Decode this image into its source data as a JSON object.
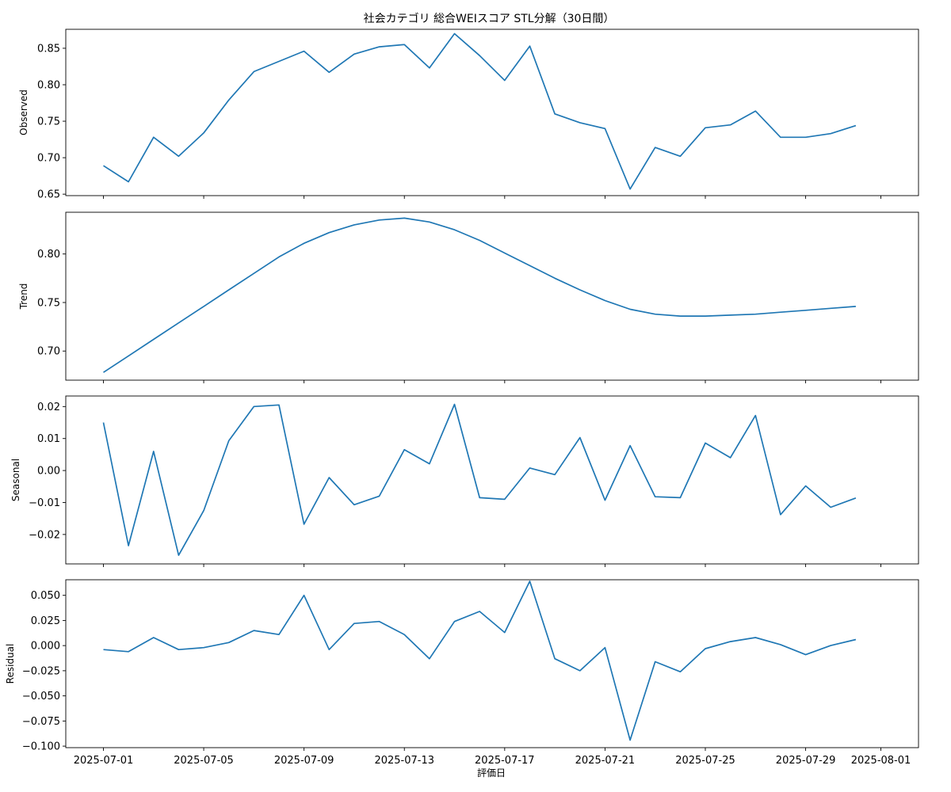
{
  "figure": {
    "title": "社会カテゴリ 総合WEIスコア STL分解（30日間）",
    "xlabel": "評価日",
    "line_color": "#1f77b4"
  },
  "chart_data": [
    {
      "type": "line",
      "ylabel": "Observed",
      "x": [
        "2025-07-01",
        "2025-07-02",
        "2025-07-03",
        "2025-07-04",
        "2025-07-05",
        "2025-07-06",
        "2025-07-07",
        "2025-07-08",
        "2025-07-09",
        "2025-07-10",
        "2025-07-11",
        "2025-07-12",
        "2025-07-13",
        "2025-07-14",
        "2025-07-15",
        "2025-07-16",
        "2025-07-17",
        "2025-07-18",
        "2025-07-19",
        "2025-07-20",
        "2025-07-21",
        "2025-07-22",
        "2025-07-23",
        "2025-07-24",
        "2025-07-25",
        "2025-07-26",
        "2025-07-27",
        "2025-07-28",
        "2025-07-29",
        "2025-07-30",
        "2025-07-31"
      ],
      "values": [
        0.689,
        0.667,
        0.728,
        0.702,
        0.734,
        0.779,
        0.818,
        0.832,
        0.846,
        0.817,
        0.842,
        0.852,
        0.855,
        0.823,
        0.87,
        0.84,
        0.806,
        0.853,
        0.76,
        0.748,
        0.74,
        0.657,
        0.714,
        0.702,
        0.741,
        0.745,
        0.764,
        0.728,
        0.728,
        0.733,
        0.744
      ],
      "ylim": [
        0.648,
        0.876
      ],
      "yticks": [
        0.65,
        0.7,
        0.75,
        0.8,
        0.85
      ],
      "ytick_labels": [
        "0.65",
        "0.70",
        "0.75",
        "0.80",
        "0.85"
      ]
    },
    {
      "type": "line",
      "ylabel": "Trend",
      "x": [
        "2025-07-01",
        "2025-07-02",
        "2025-07-03",
        "2025-07-04",
        "2025-07-05",
        "2025-07-06",
        "2025-07-07",
        "2025-07-08",
        "2025-07-09",
        "2025-07-10",
        "2025-07-11",
        "2025-07-12",
        "2025-07-13",
        "2025-07-14",
        "2025-07-15",
        "2025-07-16",
        "2025-07-17",
        "2025-07-18",
        "2025-07-19",
        "2025-07-20",
        "2025-07-21",
        "2025-07-22",
        "2025-07-23",
        "2025-07-24",
        "2025-07-25",
        "2025-07-26",
        "2025-07-27",
        "2025-07-28",
        "2025-07-29",
        "2025-07-30",
        "2025-07-31"
      ],
      "values": [
        0.678,
        0.695,
        0.712,
        0.729,
        0.746,
        0.763,
        0.78,
        0.797,
        0.811,
        0.822,
        0.83,
        0.835,
        0.837,
        0.833,
        0.825,
        0.814,
        0.801,
        0.788,
        0.775,
        0.763,
        0.752,
        0.743,
        0.738,
        0.736,
        0.736,
        0.737,
        0.738,
        0.74,
        0.742,
        0.744,
        0.746
      ],
      "ylim": [
        0.67,
        0.843
      ],
      "yticks": [
        0.7,
        0.75,
        0.8
      ],
      "ytick_labels": [
        "0.70",
        "0.75",
        "0.80"
      ]
    },
    {
      "type": "line",
      "ylabel": "Seasonal",
      "x": [
        "2025-07-01",
        "2025-07-02",
        "2025-07-03",
        "2025-07-04",
        "2025-07-05",
        "2025-07-06",
        "2025-07-07",
        "2025-07-08",
        "2025-07-09",
        "2025-07-10",
        "2025-07-11",
        "2025-07-12",
        "2025-07-13",
        "2025-07-14",
        "2025-07-15",
        "2025-07-16",
        "2025-07-17",
        "2025-07-18",
        "2025-07-19",
        "2025-07-20",
        "2025-07-21",
        "2025-07-22",
        "2025-07-23",
        "2025-07-24",
        "2025-07-25",
        "2025-07-26",
        "2025-07-27",
        "2025-07-28",
        "2025-07-29",
        "2025-07-30",
        "2025-07-31"
      ],
      "values": [
        0.015,
        -0.0235,
        0.006,
        -0.0265,
        -0.0125,
        0.0093,
        0.02,
        0.0205,
        -0.0168,
        -0.0022,
        -0.0107,
        -0.008,
        0.0065,
        0.0021,
        0.0207,
        -0.0085,
        -0.009,
        0.0008,
        -0.0013,
        0.0103,
        -0.0093,
        0.0078,
        -0.0082,
        -0.0085,
        0.0086,
        0.004,
        0.0172,
        -0.0138,
        -0.0048,
        -0.0115,
        -0.0086
      ],
      "ylim": [
        -0.0292,
        0.0233
      ],
      "yticks": [
        -0.02,
        -0.01,
        0.0,
        0.01,
        0.02
      ],
      "ytick_labels": [
        "−0.02",
        "−0.01",
        "0.00",
        "0.01",
        "0.02"
      ]
    },
    {
      "type": "line",
      "ylabel": "Residual",
      "x": [
        "2025-07-01",
        "2025-07-02",
        "2025-07-03",
        "2025-07-04",
        "2025-07-05",
        "2025-07-06",
        "2025-07-07",
        "2025-07-08",
        "2025-07-09",
        "2025-07-10",
        "2025-07-11",
        "2025-07-12",
        "2025-07-13",
        "2025-07-14",
        "2025-07-15",
        "2025-07-16",
        "2025-07-17",
        "2025-07-18",
        "2025-07-19",
        "2025-07-20",
        "2025-07-21",
        "2025-07-22",
        "2025-07-23",
        "2025-07-24",
        "2025-07-25",
        "2025-07-26",
        "2025-07-27",
        "2025-07-28",
        "2025-07-29",
        "2025-07-30",
        "2025-07-31"
      ],
      "values": [
        -0.004,
        -0.006,
        0.008,
        -0.004,
        -0.002,
        0.003,
        0.015,
        0.011,
        0.05,
        -0.004,
        0.022,
        0.024,
        0.011,
        -0.013,
        0.024,
        0.034,
        0.013,
        0.064,
        -0.013,
        -0.025,
        -0.002,
        -0.094,
        -0.016,
        -0.026,
        -0.003,
        0.004,
        0.008,
        0.001,
        -0.009,
        0.0,
        0.006
      ],
      "ylim": [
        -0.1015,
        0.0655
      ],
      "yticks": [
        -0.1,
        -0.075,
        -0.05,
        -0.025,
        0.0,
        0.025,
        0.05
      ],
      "ytick_labels": [
        "−0.100",
        "−0.075",
        "−0.050",
        "−0.025",
        "0.000",
        "0.025",
        "0.050"
      ]
    }
  ],
  "x_axis": {
    "ticks": [
      "2025-07-01",
      "2025-07-05",
      "2025-07-09",
      "2025-07-13",
      "2025-07-17",
      "2025-07-21",
      "2025-07-25",
      "2025-07-29",
      "2025-08-01"
    ],
    "tick_labels": [
      "2025-07-01",
      "2025-07-05",
      "2025-07-09",
      "2025-07-13",
      "2025-07-17",
      "2025-07-21",
      "2025-07-25",
      "2025-07-29",
      "2025-08-01"
    ],
    "range": [
      "2025-06-29T12:00",
      "2025-08-02T12:00"
    ]
  }
}
